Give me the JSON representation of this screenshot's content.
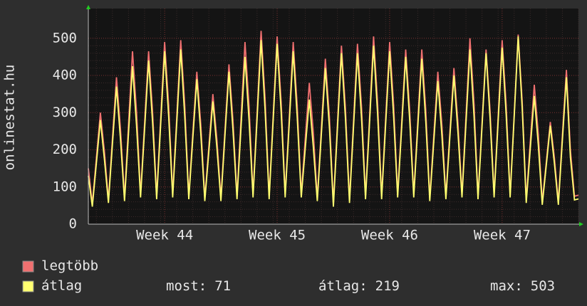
{
  "chart_data": {
    "type": "line",
    "ylabel": "onlinestat.hu",
    "categories": [
      null,
      null,
      null,
      null,
      null,
      null,
      null,
      null,
      null,
      null,
      null,
      null,
      null,
      null,
      null,
      null,
      null,
      null,
      null,
      "Week 44",
      null,
      null,
      null,
      null,
      null,
      null,
      null,
      null,
      null,
      null,
      null,
      null,
      null,
      null,
      null,
      null,
      null,
      null,
      null,
      null,
      null,
      null,
      null,
      null,
      null,
      null,
      null,
      "Week 45",
      null,
      null,
      null,
      null,
      null,
      null,
      null,
      null,
      null,
      null,
      null,
      null,
      null,
      null,
      null,
      null,
      null,
      null,
      null,
      null,
      null,
      null,
      null,
      null,
      null,
      null,
      null,
      "Week 46",
      null,
      null,
      null,
      null,
      null,
      null,
      null,
      null,
      null,
      null,
      null,
      null,
      null,
      null,
      null,
      null,
      null,
      null,
      null,
      null,
      null,
      null,
      null,
      null,
      null,
      null,
      null,
      "Week 47",
      null,
      null,
      null,
      null,
      null,
      null,
      null,
      null,
      null,
      null,
      null,
      null,
      null,
      null,
      null,
      null,
      null,
      null,
      null
    ],
    "series": [
      {
        "name": "legtöbb",
        "color": "#f07070",
        "values": [
          150,
          55,
          178,
          300,
          195,
          65,
          230,
          395,
          257,
          70,
          268,
          465,
          302,
          80,
          273,
          465,
          302,
          75,
          283,
          490,
          319,
          80,
          288,
          495,
          322,
          75,
          243,
          410,
          267,
          70,
          210,
          350,
          228,
          70,
          250,
          430,
          280,
          75,
          283,
          490,
          319,
          80,
          300,
          520,
          338,
          75,
          290,
          505,
          328,
          80,
          285,
          490,
          319,
          80,
          230,
          380,
          247,
          70,
          258,
          445,
          289,
          55,
          268,
          480,
          312,
          65,
          275,
          485,
          315,
          75,
          290,
          505,
          328,
          75,
          283,
          490,
          319,
          80,
          275,
          470,
          306,
          80,
          275,
          470,
          306,
          70,
          240,
          410,
          267,
          75,
          248,
          420,
          273,
          80,
          290,
          500,
          325,
          75,
          273,
          470,
          306,
          80,
          288,
          495,
          322,
          80,
          295,
          510,
          332,
          65,
          220,
          375,
          244,
          60,
          168,
          275,
          179,
          60,
          238,
          415,
          200,
          75,
          78
        ]
      },
      {
        "name": "átlag",
        "color": "#ffff70",
        "values": [
          130,
          47,
          164,
          280,
          174,
          57,
          214,
          370,
          229,
          62,
          244,
          425,
          264,
          72,
          256,
          440,
          273,
          67,
          266,
          465,
          288,
          72,
          271,
          470,
          291,
          67,
          229,
          390,
          242,
          62,
          196,
          330,
          205,
          62,
          236,
          410,
          254,
          67,
          259,
          450,
          279,
          72,
          284,
          495,
          307,
          67,
          276,
          485,
          301,
          72,
          269,
          465,
          288,
          72,
          204,
          335,
          208,
          62,
          241,
          420,
          260,
          47,
          254,
          460,
          285,
          57,
          259,
          460,
          285,
          67,
          274,
          480,
          298,
          67,
          266,
          465,
          288,
          72,
          261,
          450,
          279,
          72,
          259,
          445,
          276,
          62,
          224,
          385,
          239,
          67,
          234,
          400,
          248,
          72,
          271,
          470,
          291,
          67,
          264,
          460,
          285,
          72,
          274,
          475,
          295,
          72,
          289,
          505,
          313,
          57,
          201,
          345,
          214,
          52,
          159,
          265,
          164,
          52,
          224,
          395,
          180,
          65,
          68
        ]
      }
    ],
    "ylim": [
      0,
      580
    ],
    "yticks": [
      0,
      100,
      200,
      300,
      400,
      500
    ],
    "grid": true,
    "stats": [
      {
        "label": "most:",
        "value": 71
      },
      {
        "label": "átlag:",
        "value": 219
      },
      {
        "label": "max:",
        "value": 503
      }
    ]
  }
}
